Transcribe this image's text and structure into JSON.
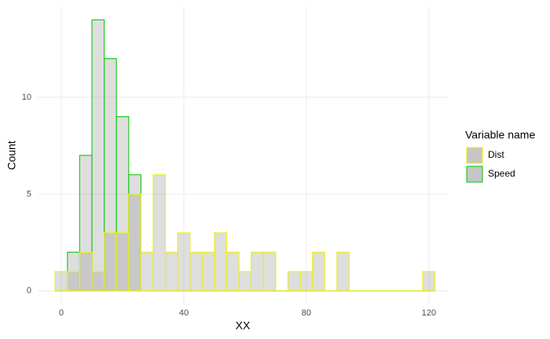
{
  "chart_data": {
    "type": "histogram",
    "x_label": "XX",
    "y_label": "Count",
    "legend_title": "Variable name",
    "bins": [
      -2,
      2,
      6,
      10,
      14,
      18,
      22,
      26,
      30,
      34,
      38,
      42,
      46,
      50,
      54,
      58,
      62,
      66,
      70,
      74,
      78,
      82,
      86,
      90,
      94,
      98,
      102,
      106,
      110,
      114,
      118,
      122
    ],
    "series": [
      {
        "name": "Speed",
        "color": "#22cc22",
        "values": [
          0,
          2,
          7,
          14,
          12,
          9,
          6,
          0,
          0,
          0,
          0,
          0,
          0,
          0,
          0,
          0,
          0,
          0,
          0,
          0,
          0,
          0,
          0,
          0,
          0,
          0,
          0,
          0,
          0,
          0,
          0
        ]
      },
      {
        "name": "Dist",
        "color": "#eeee22",
        "values": [
          1,
          1,
          2,
          1,
          3,
          3,
          5,
          2,
          6,
          2,
          3,
          2,
          2,
          3,
          2,
          1,
          2,
          2,
          0,
          1,
          1,
          2,
          0,
          2,
          0,
          0,
          0,
          0,
          0,
          0,
          1
        ]
      }
    ],
    "fill": "#a0a0a0",
    "xlim": [
      -7.7,
      126.2
    ],
    "ylim": [
      -0.7,
      14.7
    ],
    "xticks": [
      0,
      40,
      80,
      120
    ],
    "yticks": [
      0,
      5,
      10
    ],
    "grid": true
  }
}
